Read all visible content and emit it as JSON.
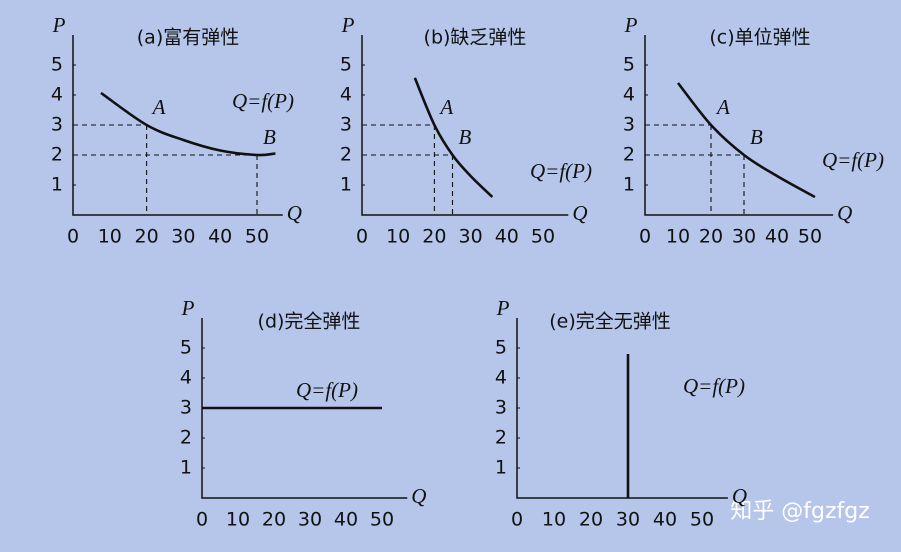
{
  "chart_data": [
    {
      "type": "line",
      "title": "(a)富有弹性",
      "x_label": "Q",
      "y_label": "P",
      "xlim": [
        0,
        57
      ],
      "ylim": [
        0,
        6
      ],
      "xticks": [
        0,
        10,
        20,
        30,
        40,
        50
      ],
      "yticks": [
        1,
        2,
        3,
        4,
        5
      ],
      "grid": false,
      "series": [
        {
          "color": "#111111",
          "x": [
            7.6,
            20,
            30,
            40,
            50,
            55
          ],
          "values": [
            4.07,
            3,
            2.5,
            2.15,
            2,
            2.05
          ]
        }
      ],
      "annotation": "Q=f(P)",
      "points": [
        {
          "label": "A",
          "x": 20,
          "y": 3
        },
        {
          "label": "B",
          "x": 50,
          "y": 2
        }
      ]
    },
    {
      "type": "line",
      "title": "(b)缺乏弹性",
      "x_label": "Q",
      "y_label": "P",
      "xlim": [
        0,
        57
      ],
      "ylim": [
        0,
        6
      ],
      "xticks": [
        0,
        10,
        20,
        30,
        40,
        50
      ],
      "yticks": [
        1,
        2,
        3,
        4,
        5
      ],
      "grid": false,
      "series": [
        {
          "color": "#111111",
          "x": [
            14.6,
            20,
            25,
            30,
            36
          ],
          "values": [
            4.57,
            3,
            2,
            1.3,
            0.6
          ]
        }
      ],
      "annotation": "Q=f(P)",
      "points": [
        {
          "label": "A",
          "x": 20,
          "y": 3
        },
        {
          "label": "B",
          "x": 25,
          "y": 2
        }
      ]
    },
    {
      "type": "line",
      "title": "(c)单位弹性",
      "x_label": "Q",
      "y_label": "P",
      "xlim": [
        0,
        57
      ],
      "ylim": [
        0,
        6
      ],
      "xticks": [
        0,
        10,
        20,
        30,
        40,
        50
      ],
      "yticks": [
        1,
        2,
        3,
        4,
        5
      ],
      "grid": false,
      "series": [
        {
          "color": "#111111",
          "x": [
            10,
            20,
            30,
            40,
            51.5
          ],
          "values": [
            4.4,
            3,
            2,
            1.3,
            0.6
          ]
        }
      ],
      "annotation": "Q=f(P)",
      "points": [
        {
          "label": "A",
          "x": 20,
          "y": 3
        },
        {
          "label": "B",
          "x": 30,
          "y": 2
        }
      ]
    },
    {
      "type": "line",
      "title": "(d)完全弹性",
      "x_label": "Q",
      "y_label": "P",
      "xlim": [
        0,
        57
      ],
      "ylim": [
        0,
        6
      ],
      "xticks": [
        0,
        10,
        20,
        30,
        40,
        50
      ],
      "yticks": [
        1,
        2,
        3,
        4,
        5
      ],
      "grid": false,
      "series": [
        {
          "color": "#111111",
          "x": [
            0,
            50
          ],
          "values": [
            3,
            3
          ]
        }
      ],
      "annotation": "Q=f(P)",
      "points": []
    },
    {
      "type": "line",
      "title": "(e)完全无弹性",
      "x_label": "Q",
      "y_label": "P",
      "xlim": [
        0,
        57
      ],
      "ylim": [
        0,
        6
      ],
      "xticks": [
        0,
        10,
        20,
        30,
        40,
        50
      ],
      "yticks": [
        1,
        2,
        3,
        4,
        5
      ],
      "grid": false,
      "series": [
        {
          "color": "#111111",
          "x": [
            30,
            30
          ],
          "values": [
            0,
            4.8
          ]
        }
      ],
      "annotation": "Q=f(P)",
      "points": []
    }
  ],
  "watermark": "知乎 @fgzfgz"
}
